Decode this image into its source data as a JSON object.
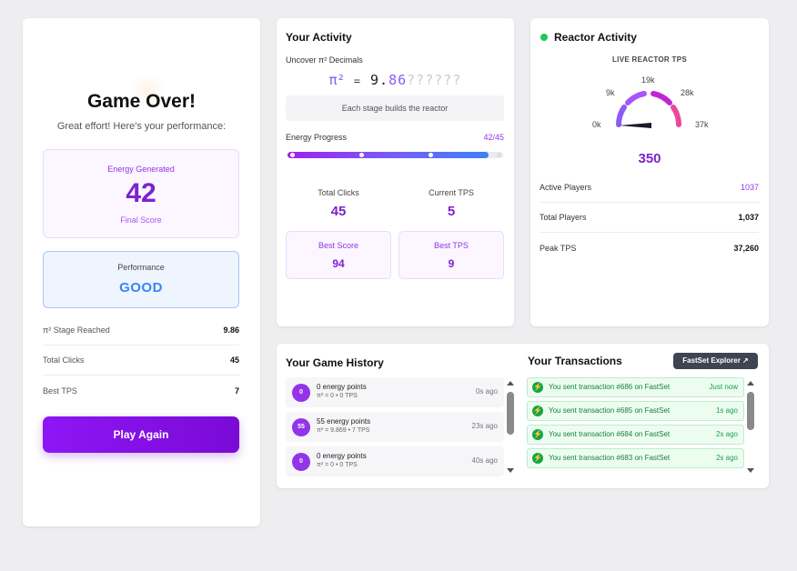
{
  "game_over": {
    "title": "Game Over!",
    "subtitle": "Great effort! Here's your performance:",
    "energy": {
      "label": "Energy Generated",
      "value": "42",
      "caption": "Final Score"
    },
    "performance": {
      "label": "Performance",
      "value": "GOOD"
    },
    "stats": [
      {
        "label": "π² Stage Reached",
        "value": "9.86"
      },
      {
        "label": "Total Clicks",
        "value": "45"
      },
      {
        "label": "Best TPS",
        "value": "7"
      }
    ],
    "play_again": "Play Again"
  },
  "activity": {
    "title": "Your Activity",
    "uncover": "Uncover π² Decimals",
    "pi_symbol": "π²",
    "pi_eq": "=",
    "pi_int": "9.",
    "pi_decimals": "86",
    "pi_unknown": "??????",
    "stage_note": "Each stage builds the reactor",
    "energy_progress_label": "Energy Progress",
    "energy_progress_count": "42/45",
    "energy_progress_fraction": 0.933,
    "total_clicks_label": "Total Clicks",
    "total_clicks": "45",
    "current_tps_label": "Current TPS",
    "current_tps": "5",
    "best_score_label": "Best Score",
    "best_score": "94",
    "best_tps_label": "Best TPS",
    "best_tps": "9"
  },
  "reactor": {
    "title": "Reactor Activity",
    "live_label": "LIVE REACTOR TPS",
    "gauge_labels": {
      "min": "0k",
      "l1": "9k",
      "l2": "19k",
      "l3": "28k",
      "max": "37k"
    },
    "tps": "350",
    "rows": [
      {
        "label": "Active Players",
        "value": "1037"
      },
      {
        "label": "Total Players",
        "value": "1,037"
      },
      {
        "label": "Peak TPS",
        "value": "37,260"
      }
    ]
  },
  "history": {
    "title": "Your Game History",
    "items": [
      {
        "badge": "0",
        "title": "0 energy points",
        "detail": "π² = 0 • 0 TPS",
        "ago": "0s ago"
      },
      {
        "badge": "55",
        "title": "55 energy points",
        "detail": "π² = 9.869 • 7 TPS",
        "ago": "23s ago"
      },
      {
        "badge": "0",
        "title": "0 energy points",
        "detail": "π² = 0 • 0 TPS",
        "ago": "40s ago"
      }
    ]
  },
  "transactions": {
    "title": "Your Transactions",
    "explorer_button": "FastSet Explorer",
    "items": [
      {
        "text": "You sent transaction #686 on FastSet",
        "when": "Just now"
      },
      {
        "text": "You sent transaction #685 on FastSet",
        "when": "1s ago"
      },
      {
        "text": "You sent transaction #684 on FastSet",
        "when": "2s ago"
      },
      {
        "text": "You sent transaction #683 on FastSet",
        "when": "2s ago"
      }
    ]
  },
  "colors": {
    "accent_purple": "#7e22ce",
    "live_green": "#22c55e",
    "performance_blue": "#3b82f6"
  }
}
